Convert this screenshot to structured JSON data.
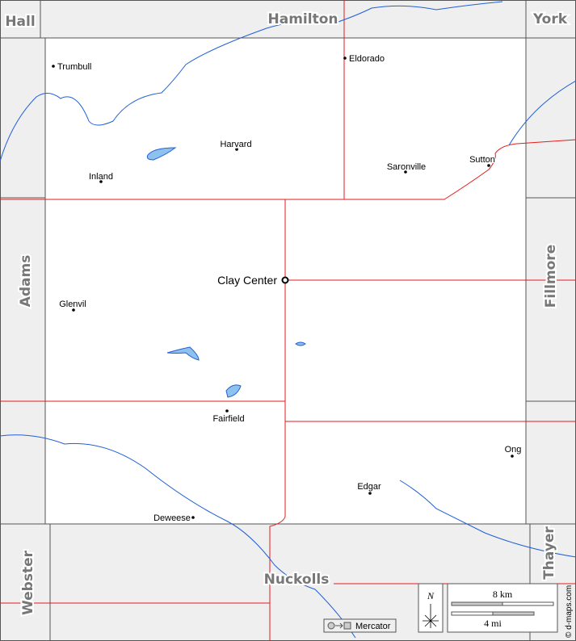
{
  "neighbors": [
    "Hall",
    "Hamilton",
    "York",
    "Adams",
    "Fillmore",
    "Webster",
    "Nuckolls",
    "Thayer"
  ],
  "county_seat": "Clay Center",
  "towns": [
    "Trumbull",
    "Eldorado",
    "Harvard",
    "Inland",
    "Saronville",
    "Sutton",
    "Glenvil",
    "Fairfield",
    "Ong",
    "Edgar",
    "Deweese"
  ],
  "compass": "N",
  "scale": {
    "km": "8 km",
    "mi": "4 mi"
  },
  "projection": "Mercator",
  "credit": "© d-maps.com"
}
